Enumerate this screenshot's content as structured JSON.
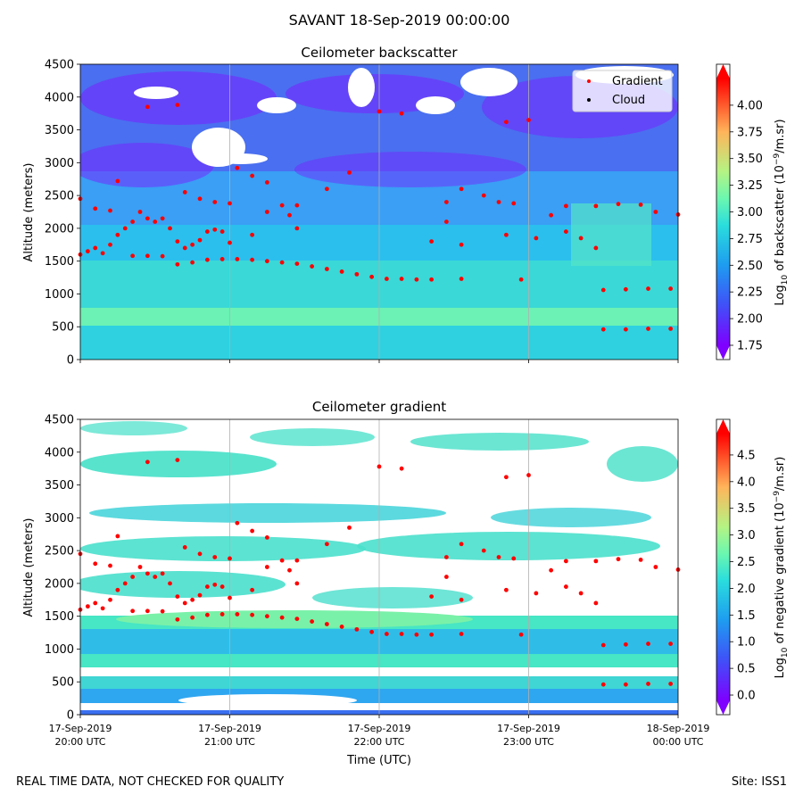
{
  "header": {
    "suptitle": "SAVANT 18-Sep-2019 00:00:00"
  },
  "footer": {
    "disclaimer": "REAL TIME DATA, NOT CHECKED FOR QUALITY",
    "site": "Site: ISS1"
  },
  "colors": {
    "point": "#ff0000",
    "cloud": "#000000",
    "grid": "#b0b0b0"
  },
  "chart_data": [
    {
      "type": "heatmap",
      "title": "Ceilometer backscatter",
      "ylabel": "Altitude (meters)",
      "xlabel": "",
      "xlim": [
        0,
        4
      ],
      "ylim": [
        0,
        4500
      ],
      "yticks": [
        0,
        500,
        1000,
        1500,
        2000,
        2500,
        3000,
        3500,
        4000,
        4500
      ],
      "x_tick_labels": [
        "",
        "",
        "",
        "",
        ""
      ],
      "grid": "vertical",
      "legend": {
        "placement": "top-right",
        "entries": [
          "Gradient",
          "Cloud"
        ]
      },
      "colorbar": {
        "label_base": "Log",
        "label_sub": "10",
        "label_mid": " of backscatter (10",
        "label_sup": "−9",
        "label_end": "/m.sr)",
        "range": [
          1.75,
          4.25
        ],
        "ticks": [
          "1.75",
          "2.00",
          "2.25",
          "2.50",
          "2.75",
          "3.00",
          "3.25",
          "3.50",
          "3.75",
          "4.00"
        ]
      },
      "gradient_points": [
        {
          "x": 0.0,
          "y": 1600
        },
        {
          "x": 0.05,
          "y": 1650
        },
        {
          "x": 0.1,
          "y": 1700
        },
        {
          "x": 0.15,
          "y": 1620
        },
        {
          "x": 0.2,
          "y": 1750
        },
        {
          "x": 0.25,
          "y": 1900
        },
        {
          "x": 0.3,
          "y": 2000
        },
        {
          "x": 0.35,
          "y": 2100
        },
        {
          "x": 0.4,
          "y": 2250
        },
        {
          "x": 0.45,
          "y": 2150
        },
        {
          "x": 0.5,
          "y": 2100
        },
        {
          "x": 0.55,
          "y": 2150
        },
        {
          "x": 0.6,
          "y": 2000
        },
        {
          "x": 0.65,
          "y": 1800
        },
        {
          "x": 0.7,
          "y": 1700
        },
        {
          "x": 0.75,
          "y": 1750
        },
        {
          "x": 0.8,
          "y": 1820
        },
        {
          "x": 0.85,
          "y": 1950
        },
        {
          "x": 0.9,
          "y": 1980
        },
        {
          "x": 0.95,
          "y": 1950
        },
        {
          "x": 1.0,
          "y": 1780
        },
        {
          "x": 0.35,
          "y": 1580
        },
        {
          "x": 0.45,
          "y": 1580
        },
        {
          "x": 0.55,
          "y": 1575
        },
        {
          "x": 0.65,
          "y": 1450
        },
        {
          "x": 0.75,
          "y": 1480
        },
        {
          "x": 0.85,
          "y": 1520
        },
        {
          "x": 0.95,
          "y": 1530
        },
        {
          "x": 1.05,
          "y": 1530
        },
        {
          "x": 1.15,
          "y": 1520
        },
        {
          "x": 1.25,
          "y": 1500
        },
        {
          "x": 1.35,
          "y": 1480
        },
        {
          "x": 1.45,
          "y": 1460
        },
        {
          "x": 1.55,
          "y": 1420
        },
        {
          "x": 1.65,
          "y": 1380
        },
        {
          "x": 1.75,
          "y": 1340
        },
        {
          "x": 1.85,
          "y": 1300
        },
        {
          "x": 1.95,
          "y": 1260
        },
        {
          "x": 2.05,
          "y": 1230
        },
        {
          "x": 2.15,
          "y": 1230
        },
        {
          "x": 2.25,
          "y": 1220
        },
        {
          "x": 2.35,
          "y": 1220
        },
        {
          "x": 2.55,
          "y": 1230
        },
        {
          "x": 2.95,
          "y": 1220
        },
        {
          "x": 3.5,
          "y": 1060
        },
        {
          "x": 3.65,
          "y": 1070
        },
        {
          "x": 3.8,
          "y": 1080
        },
        {
          "x": 3.95,
          "y": 1080
        },
        {
          "x": 3.5,
          "y": 460
        },
        {
          "x": 3.65,
          "y": 460
        },
        {
          "x": 3.8,
          "y": 470
        },
        {
          "x": 3.95,
          "y": 470
        },
        {
          "x": 0.0,
          "y": 2450
        },
        {
          "x": 0.1,
          "y": 2300
        },
        {
          "x": 0.2,
          "y": 2270
        },
        {
          "x": 0.7,
          "y": 2550
        },
        {
          "x": 0.8,
          "y": 2450
        },
        {
          "x": 0.9,
          "y": 2400
        },
        {
          "x": 1.0,
          "y": 2380
        },
        {
          "x": 1.05,
          "y": 2920
        },
        {
          "x": 1.15,
          "y": 2800
        },
        {
          "x": 1.25,
          "y": 2700
        },
        {
          "x": 1.35,
          "y": 2350
        },
        {
          "x": 1.45,
          "y": 2350
        },
        {
          "x": 1.65,
          "y": 2600
        },
        {
          "x": 1.8,
          "y": 2850
        },
        {
          "x": 2.0,
          "y": 3780
        },
        {
          "x": 2.15,
          "y": 3750
        },
        {
          "x": 1.15,
          "y": 1900
        },
        {
          "x": 1.25,
          "y": 2250
        },
        {
          "x": 1.4,
          "y": 2200
        },
        {
          "x": 1.45,
          "y": 2000
        },
        {
          "x": 2.35,
          "y": 1800
        },
        {
          "x": 2.45,
          "y": 2100
        },
        {
          "x": 2.55,
          "y": 1750
        },
        {
          "x": 2.45,
          "y": 2400
        },
        {
          "x": 2.55,
          "y": 2600
        },
        {
          "x": 2.7,
          "y": 2500
        },
        {
          "x": 2.8,
          "y": 2400
        },
        {
          "x": 2.9,
          "y": 2380
        },
        {
          "x": 2.85,
          "y": 1900
        },
        {
          "x": 3.05,
          "y": 1850
        },
        {
          "x": 3.15,
          "y": 2200
        },
        {
          "x": 3.25,
          "y": 1950
        },
        {
          "x": 3.35,
          "y": 1850
        },
        {
          "x": 3.45,
          "y": 1700
        },
        {
          "x": 3.25,
          "y": 2340
        },
        {
          "x": 3.45,
          "y": 2340
        },
        {
          "x": 3.6,
          "y": 2370
        },
        {
          "x": 3.75,
          "y": 2360
        },
        {
          "x": 3.85,
          "y": 2250
        },
        {
          "x": 4.0,
          "y": 2210
        },
        {
          "x": 2.85,
          "y": 3620
        },
        {
          "x": 3.0,
          "y": 3650
        },
        {
          "x": 0.25,
          "y": 2720
        },
        {
          "x": 0.45,
          "y": 3850
        },
        {
          "x": 0.65,
          "y": 3880
        }
      ],
      "cloud_points": []
    },
    {
      "type": "heatmap",
      "title": "Ceilometer gradient",
      "ylabel": "Altitude (meters)",
      "xlabel": "Time (UTC)",
      "xlim": [
        0,
        4
      ],
      "ylim": [
        0,
        4500
      ],
      "yticks": [
        0,
        500,
        1000,
        1500,
        2000,
        2500,
        3000,
        3500,
        4000,
        4500
      ],
      "x_tick_labels": [
        "17-Sep-2019\n20:00 UTC",
        "17-Sep-2019\n21:00 UTC",
        "17-Sep-2019\n22:00 UTC",
        "17-Sep-2019\n23:00 UTC",
        "18-Sep-2019\n00:00 UTC"
      ],
      "grid": "vertical",
      "colorbar": {
        "label_base": "Log",
        "label_sub": "10",
        "label_mid": " of negative gradient (10",
        "label_sup": "−9",
        "label_end": "/m.sr)",
        "range": [
          -0.1,
          4.9
        ],
        "ticks": [
          "0.0",
          "0.5",
          "1.0",
          "1.5",
          "2.0",
          "2.5",
          "3.0",
          "3.5",
          "4.0",
          "4.5"
        ]
      },
      "gradient_points": "same-as-panel-1"
    }
  ]
}
